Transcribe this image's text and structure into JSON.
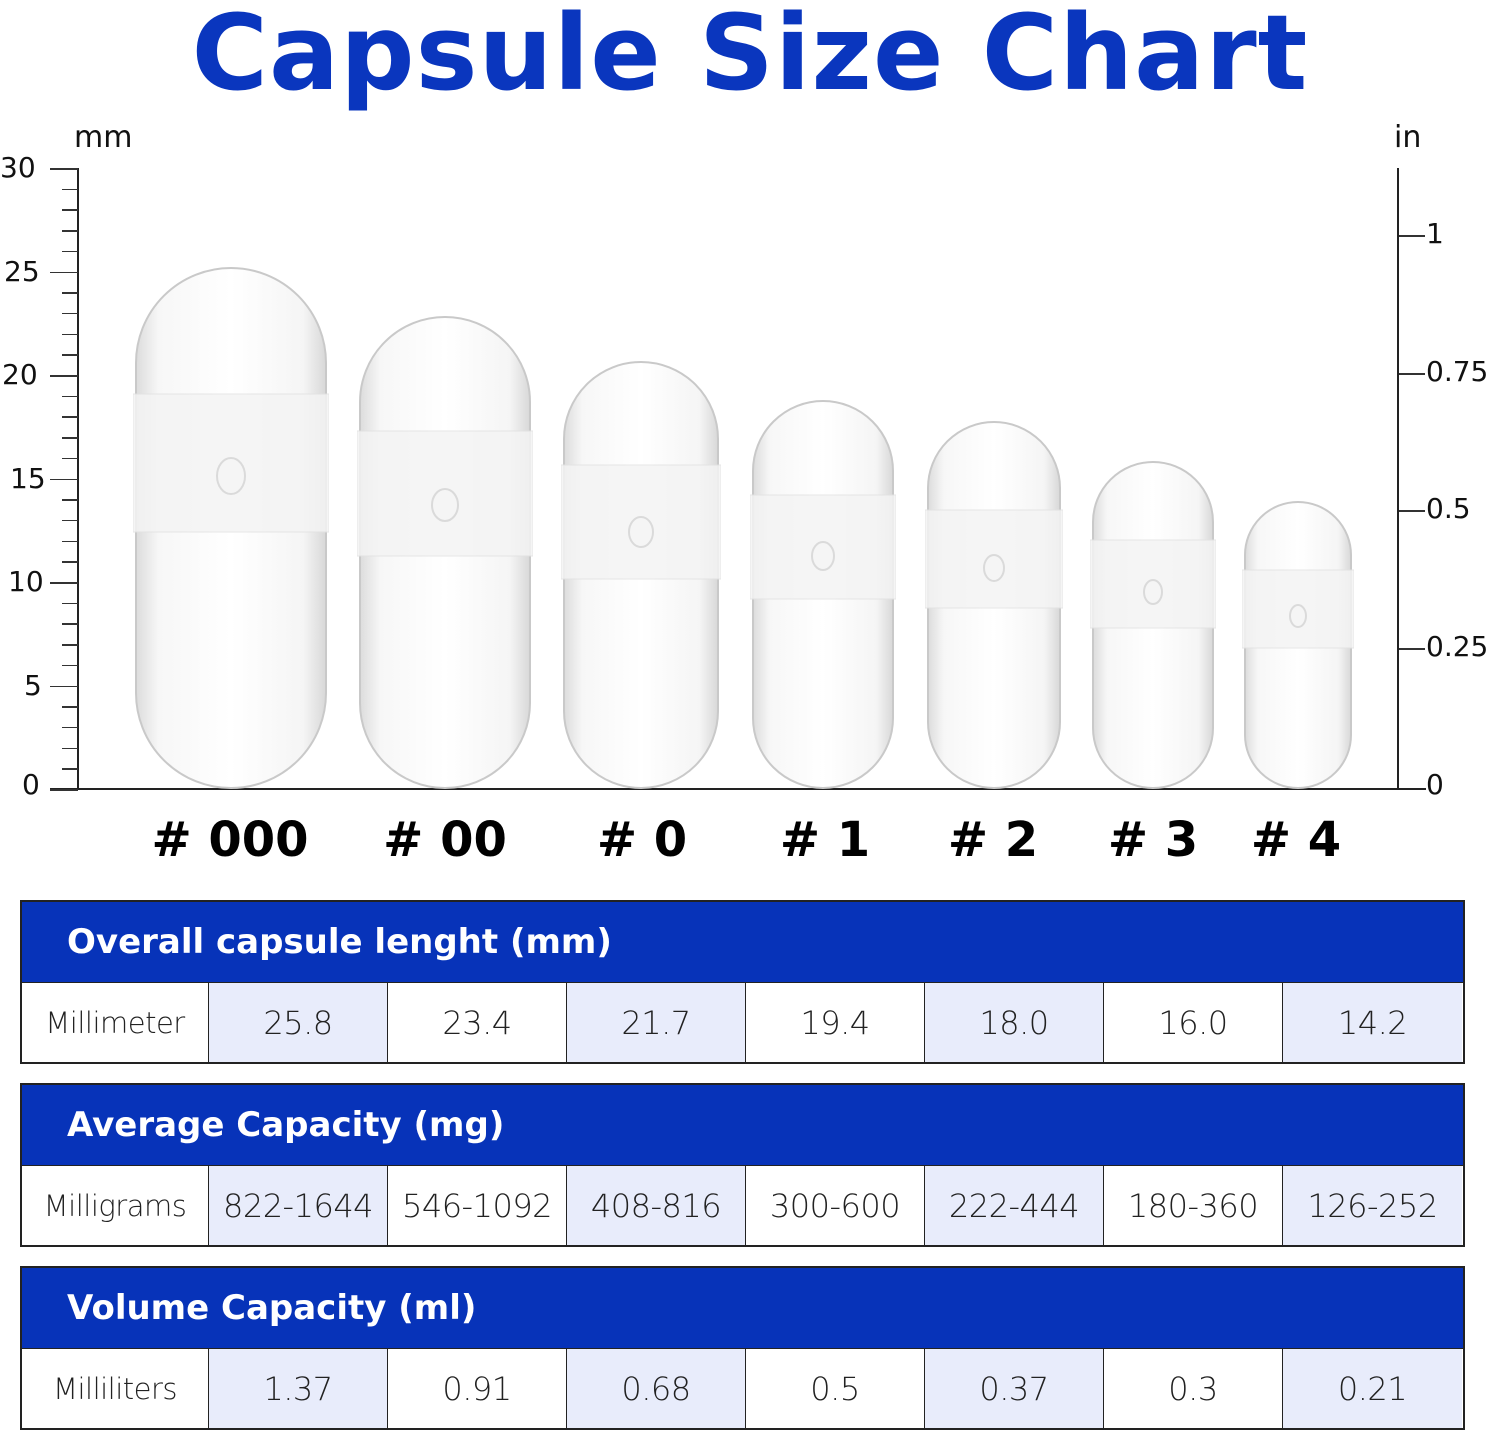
{
  "title": "Capsule Size Chart",
  "colors": {
    "title": "#0a36be",
    "table_header_bg": "#0733b9",
    "shaded_cell_bg": "#e8ecfb",
    "text": "#111111"
  },
  "chart": {
    "left_unit": "mm",
    "right_unit": "in",
    "left_ticks": [
      "30",
      "25",
      "20",
      "15",
      "10",
      "5",
      "0"
    ],
    "right_ticks": [
      "1",
      "0.75",
      "0.5",
      "0.25",
      "0"
    ],
    "capsule_labels": [
      "# 000",
      "# 00",
      "# 0",
      "# 1",
      "# 2",
      "# 3",
      "# 4"
    ]
  },
  "tables": [
    {
      "header": "Overall capsule lenght (mm)",
      "row_label": "Millimeter",
      "values": [
        "25.8",
        "23.4",
        "21.7",
        "19.4",
        "18.0",
        "16.0",
        "14.2"
      ]
    },
    {
      "header": "Average Capacity (mg)",
      "row_label": "Milligrams",
      "values": [
        "822-1644",
        "546-1092",
        "408-816",
        "300-600",
        "222-444",
        "180-360",
        "126-252"
      ]
    },
    {
      "header": "Volume Capacity (ml)",
      "row_label": "Milliliters",
      "values": [
        "1.37",
        "0.91",
        "0.68",
        "0.5",
        "0.37",
        "0.3",
        "0.21"
      ]
    }
  ],
  "chart_data": {
    "type": "bar",
    "title": "Capsule Size Chart",
    "categories": [
      "# 000",
      "# 00",
      "# 0",
      "# 1",
      "# 2",
      "# 3",
      "# 4"
    ],
    "series": [
      {
        "name": "Overall capsule length (mm)",
        "values": [
          25.8,
          23.4,
          21.7,
          19.4,
          18.0,
          16.0,
          14.2
        ]
      },
      {
        "name": "Average Capacity (mg)",
        "values": [
          "822-1644",
          "546-1092",
          "408-816",
          "300-600",
          "222-444",
          "180-360",
          "126-252"
        ]
      },
      {
        "name": "Volume Capacity (ml)",
        "values": [
          1.37,
          0.91,
          0.68,
          0.5,
          0.37,
          0.3,
          0.21
        ]
      }
    ],
    "xlabel": "",
    "ylabel": "mm",
    "ylabel_right": "in",
    "ylim": [
      0,
      30
    ],
    "ylim_right": [
      0,
      1.1
    ],
    "yticks": [
      0,
      5,
      10,
      15,
      20,
      25,
      30
    ],
    "yticks_right": [
      0,
      0.25,
      0.5,
      0.75,
      1
    ],
    "grid": false,
    "legend": "none"
  }
}
